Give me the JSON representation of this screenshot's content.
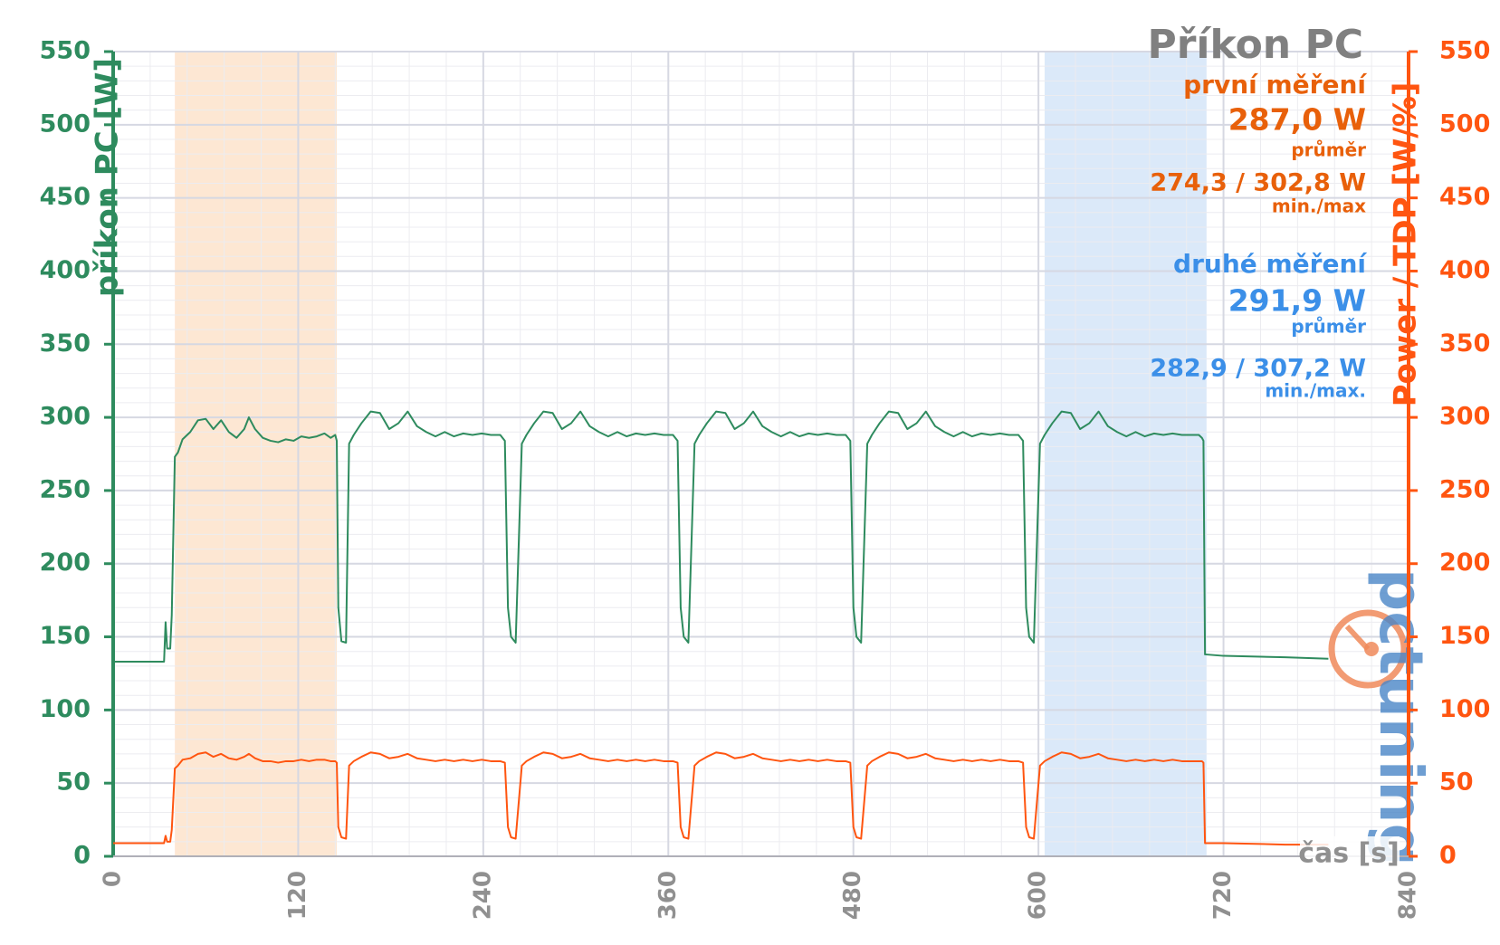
{
  "chart_data": {
    "type": "line",
    "title": "Příkon PC",
    "annotations": [
      {
        "text": "první měření",
        "color": "#e8600a"
      },
      {
        "text": "287,0 W",
        "color": "#e8600a"
      },
      {
        "text": "průměr",
        "color": "#e8600a"
      },
      {
        "text": "274,3 / 302,8 W",
        "color": "#e8600a"
      },
      {
        "text": "min./max",
        "color": "#e8600a"
      },
      {
        "text": "druhé měření",
        "color": "#3b8fe8"
      },
      {
        "text": "291,9 W",
        "color": "#3b8fe8"
      },
      {
        "text": "průměr",
        "color": "#3b8fe8"
      },
      {
        "text": "282,9 / 307,2 W",
        "color": "#3b8fe8"
      },
      {
        "text": "min./max.",
        "color": "#3b8fe8"
      }
    ],
    "x_label": "čas [s]",
    "y_label": "příkon PC [W]",
    "y2_label": "Power / TDP [W/%]",
    "watermark": "pctuning",
    "xlim": [
      0,
      840
    ],
    "xticks": [
      0,
      120,
      240,
      360,
      480,
      600,
      720,
      840
    ],
    "ylim": [
      0,
      550
    ],
    "yticks": [
      0,
      50,
      100,
      150,
      200,
      250,
      300,
      350,
      400,
      450,
      500,
      550
    ],
    "y2lim": [
      0,
      550
    ],
    "y2ticks": [
      0,
      50,
      100,
      150,
      200,
      250,
      300,
      350,
      400,
      450,
      500,
      550
    ],
    "grid": true,
    "highlights": [
      {
        "from": 40,
        "to": 145,
        "color": "#fde1c8"
      },
      {
        "from": 604,
        "to": 709,
        "color": "#d2e4f8"
      }
    ],
    "x": [
      0,
      33,
      34,
      35,
      37,
      38,
      40,
      42,
      45,
      50,
      55,
      60,
      65,
      70,
      75,
      80,
      85,
      88,
      92,
      97,
      102,
      107,
      112,
      117,
      122,
      127,
      132,
      137,
      141,
      144,
      145,
      146,
      148,
      151,
      153,
      156,
      161,
      167,
      173,
      179,
      185,
      191,
      197,
      203,
      209,
      215,
      221,
      227,
      233,
      239,
      245,
      251,
      254,
      256,
      258,
      261,
      265,
      268,
      273,
      279,
      285,
      291,
      297,
      303,
      309,
      315,
      321,
      327,
      333,
      339,
      345,
      351,
      357,
      363,
      366,
      368,
      370,
      373,
      377,
      380,
      385,
      391,
      397,
      403,
      409,
      415,
      421,
      427,
      433,
      439,
      445,
      451,
      457,
      463,
      469,
      475,
      478,
      480,
      482,
      485,
      489,
      492,
      497,
      503,
      509,
      515,
      521,
      527,
      533,
      539,
      545,
      551,
      557,
      563,
      569,
      575,
      581,
      587,
      590,
      592,
      594,
      597,
      601,
      604,
      609,
      615,
      621,
      627,
      633,
      639,
      645,
      651,
      657,
      663,
      669,
      675,
      681,
      687,
      693,
      699,
      702,
      704,
      706,
      707,
      708,
      720,
      760,
      788
    ],
    "series": [
      {
        "color": "#2e8b5e",
        "axis": "y",
        "values": [
          133,
          133,
          160,
          142,
          142,
          165,
          273,
          276,
          285,
          290,
          298,
          299,
          292,
          298,
          290,
          286,
          292,
          300,
          292,
          286,
          284,
          283,
          285,
          284,
          287,
          286,
          287,
          289,
          286,
          288,
          284,
          170,
          147,
          146,
          282,
          288,
          296,
          304,
          303,
          292,
          296,
          304,
          294,
          290,
          287,
          290,
          287,
          289,
          288,
          289,
          288,
          288,
          284,
          170,
          150,
          146,
          282,
          288,
          296,
          304,
          303,
          292,
          296,
          304,
          294,
          290,
          287,
          290,
          287,
          289,
          288,
          289,
          288,
          288,
          284,
          170,
          150,
          146,
          282,
          288,
          296,
          304,
          303,
          292,
          296,
          304,
          294,
          290,
          287,
          290,
          287,
          289,
          288,
          289,
          288,
          288,
          284,
          170,
          150,
          146,
          282,
          288,
          296,
          304,
          303,
          292,
          296,
          304,
          294,
          290,
          287,
          290,
          287,
          289,
          288,
          289,
          288,
          288,
          284,
          170,
          150,
          146,
          282,
          288,
          296,
          304,
          303,
          292,
          296,
          304,
          294,
          290,
          287,
          290,
          287,
          289,
          288,
          289,
          288,
          288,
          288,
          288,
          286,
          284,
          138,
          137,
          136,
          135
        ]
      },
      {
        "color": "#ff5510",
        "axis": "y2",
        "values": [
          9,
          9,
          14,
          10,
          10,
          18,
          60,
          62,
          66,
          67,
          70,
          71,
          68,
          70,
          67,
          66,
          68,
          70,
          67,
          65,
          65,
          64,
          65,
          65,
          66,
          65,
          66,
          66,
          65,
          65,
          64,
          20,
          13,
          12,
          62,
          65,
          68,
          71,
          70,
          67,
          68,
          70,
          67,
          66,
          65,
          66,
          65,
          66,
          65,
          66,
          65,
          65,
          64,
          20,
          13,
          12,
          62,
          65,
          68,
          71,
          70,
          67,
          68,
          70,
          67,
          66,
          65,
          66,
          65,
          66,
          65,
          66,
          65,
          65,
          64,
          20,
          13,
          12,
          62,
          65,
          68,
          71,
          70,
          67,
          68,
          70,
          67,
          66,
          65,
          66,
          65,
          66,
          65,
          66,
          65,
          65,
          64,
          20,
          13,
          12,
          62,
          65,
          68,
          71,
          70,
          67,
          68,
          70,
          67,
          66,
          65,
          66,
          65,
          66,
          65,
          66,
          65,
          65,
          64,
          20,
          13,
          12,
          62,
          65,
          68,
          71,
          70,
          67,
          68,
          70,
          67,
          66,
          65,
          66,
          65,
          66,
          65,
          66,
          65,
          65,
          65,
          65,
          65,
          64,
          9,
          9,
          8,
          8
        ]
      }
    ]
  }
}
